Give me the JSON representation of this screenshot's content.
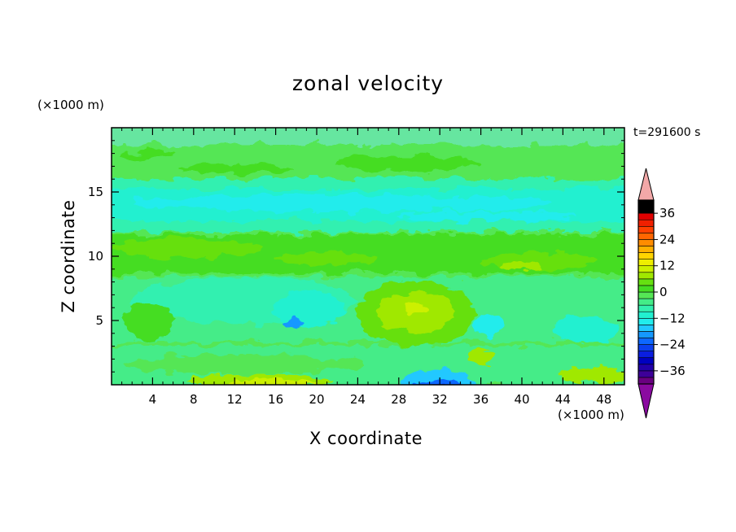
{
  "chart_data": {
    "type": "heatmap",
    "title": "zonal velocity",
    "xlabel": "X coordinate",
    "ylabel": "Z coordinate",
    "x_unit": "(×1000 m)",
    "z_unit": "(×1000 m)",
    "time_label": "t=291600 s",
    "xlim": [
      0,
      50
    ],
    "ylim": [
      0,
      20
    ],
    "x_ticks": [
      4,
      8,
      12,
      16,
      20,
      24,
      28,
      32,
      36,
      40,
      44,
      48
    ],
    "y_ticks": [
      5,
      10,
      15
    ],
    "colorbar": {
      "levels": [
        -42,
        -39,
        -36,
        -33,
        -30,
        -27,
        -24,
        -21,
        -18,
        -15,
        -12,
        -9,
        -6,
        -3,
        0,
        3,
        6,
        9,
        12,
        15,
        18,
        21,
        24,
        27,
        30,
        33,
        36,
        39,
        42
      ],
      "ticks": [
        -36,
        -24,
        -12,
        0,
        12,
        24,
        36
      ],
      "tick_labels": [
        "−36",
        "−24",
        "−12",
        "0",
        "12",
        "24",
        "36"
      ],
      "extend": "both",
      "colors": [
        "#6a0080",
        "#3d0099",
        "#2200aa",
        "#0000c0",
        "#0a1ee0",
        "#0b40ee",
        "#0d68ff",
        "#1598ff",
        "#22c8ff",
        "#22ecec",
        "#22f0d0",
        "#33f0b0",
        "#44ec88",
        "#55e655",
        "#44dd22",
        "#66e011",
        "#a0e800",
        "#ccf000",
        "#eeee00",
        "#ffd400",
        "#ffb000",
        "#ff8c00",
        "#ff6600",
        "#ff4000",
        "#f02000",
        "#e00000"
      ],
      "under_color": "#8a0aa0",
      "over_color": "#f2a8a8"
    }
  }
}
